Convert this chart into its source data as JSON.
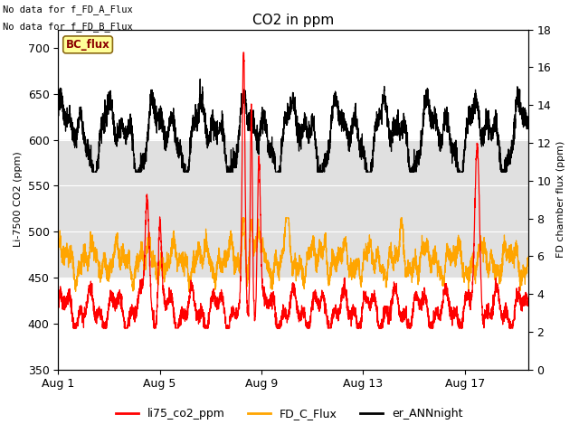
{
  "title": "CO2 in ppm",
  "ylabel_left": "Li-7500 CO2 (ppm)",
  "ylabel_right": "FD chamber flux (ppm)",
  "xlabel": "",
  "text_top_left": [
    "No data for f_FD_A_Flux",
    "No data for f_FD_B_Flux"
  ],
  "bc_flux_label": "BC_flux",
  "legend_entries": [
    "li75_co2_ppm",
    "FD_C_Flux",
    "er_ANNnight"
  ],
  "legend_colors": [
    "#ff0000",
    "#ffa500",
    "#000000"
  ],
  "ylim_left": [
    350,
    720
  ],
  "ylim_right": [
    0,
    18
  ],
  "yticks_left": [
    350,
    400,
    450,
    500,
    550,
    600,
    650,
    700
  ],
  "yticks_right": [
    0,
    2,
    4,
    6,
    8,
    10,
    12,
    14,
    16,
    18
  ],
  "xticks_labels": [
    "Aug 1",
    "Aug 5",
    "Aug 9",
    "Aug 13",
    "Aug 17"
  ],
  "xticks_positions": [
    0,
    4,
    8,
    12,
    16
  ],
  "xlim": [
    0,
    18.5
  ],
  "shading_y1": 450,
  "shading_y2": 600,
  "bg_color": "#ffffff",
  "shading_color": "#e0e0e0",
  "linewidth_main": 0.9,
  "figsize": [
    6.4,
    4.8
  ],
  "dpi": 100
}
